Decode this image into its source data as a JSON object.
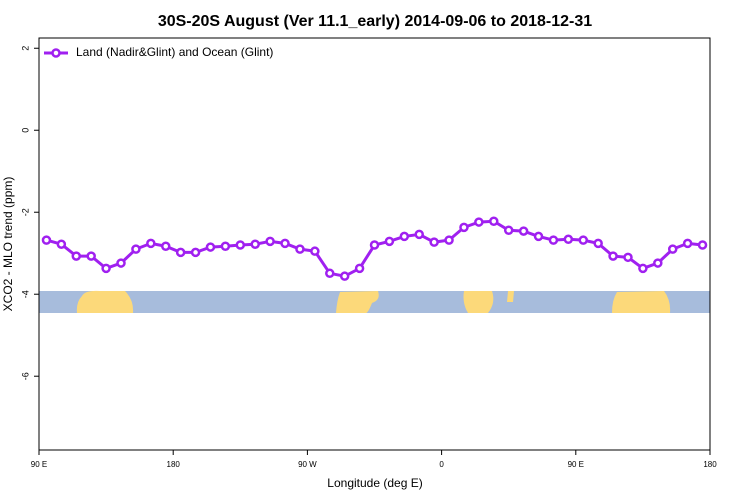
{
  "chart_data": {
    "type": "line",
    "title": "30S-20S August (Ver 11.1_early)   2014-09-06 to 2018-12-31",
    "x_label": "Longitude (deg E)",
    "y_label": "XCO2 - MLO trend (ppm)",
    "xlim": [
      90,
      540
    ],
    "xticks": [
      {
        "value": 90,
        "label": "90 E"
      },
      {
        "value": 180,
        "label": "180"
      },
      {
        "value": 270,
        "label": "90 W"
      },
      {
        "value": 360,
        "label": "0"
      },
      {
        "value": 450,
        "label": "90 E"
      },
      {
        "value": 540,
        "label": "180"
      }
    ],
    "ylim": [
      -7.8,
      2.25
    ],
    "yticks": [
      2,
      0,
      -2,
      -4,
      -6
    ],
    "legend": "top-left",
    "x": [
      95,
      105,
      115,
      125,
      135,
      145,
      155,
      165,
      175,
      185,
      195,
      205,
      215,
      225,
      235,
      245,
      255,
      265,
      275,
      285,
      295,
      305,
      315,
      325,
      335,
      345,
      355,
      365,
      375,
      385,
      395,
      405,
      415,
      425,
      435,
      445,
      455,
      465,
      475,
      485,
      495,
      505,
      515,
      525,
      535
    ],
    "series": [
      {
        "name": "Land (Nadir&Glint) and Ocean (Glint)",
        "color": "#a020f0",
        "values": [
          -2.68,
          -2.78,
          -3.07,
          -3.07,
          -3.37,
          -3.24,
          -2.9,
          -2.76,
          -2.83,
          -2.98,
          -2.98,
          -2.85,
          -2.83,
          -2.8,
          -2.78,
          -2.71,
          -2.76,
          -2.9,
          -2.95,
          -3.49,
          -3.56,
          -3.37,
          -2.8,
          -2.71,
          -2.59,
          -2.54,
          -2.73,
          -2.68,
          -2.37,
          -2.24,
          -2.22,
          -2.44,
          -2.46,
          -2.59,
          -2.68,
          -2.66,
          -2.68,
          -2.76,
          -3.07,
          -3.1,
          -3.37,
          -3.24,
          -2.9,
          -2.76,
          -2.8
        ]
      }
    ]
  }
}
